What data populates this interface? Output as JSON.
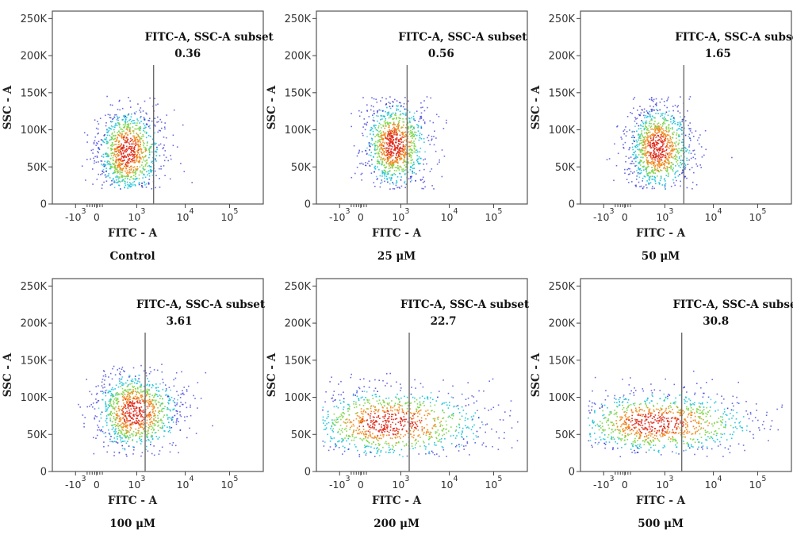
{
  "figure": {
    "y_axis_title": "SSC - A",
    "x_axis_title": "FITC - A",
    "gate_name": "FITC-A, SSC-A subset",
    "y_tick_labels": [
      "0",
      "50K",
      "100K",
      "150K",
      "200K",
      "250K"
    ],
    "x_tick_labels": [
      {
        "base": "-10",
        "exp": "3"
      },
      {
        "base": "0",
        "exp": ""
      },
      {
        "base": "10",
        "exp": "3"
      },
      {
        "base": "10",
        "exp": "4"
      },
      {
        "base": "10",
        "exp": "5"
      }
    ],
    "colors": {
      "low_density": "#3a3ad6",
      "mid_density": "#22c4d8",
      "high_density": "#f08a1c",
      "peak_density": "#e02a1a",
      "gate_line": "#6b6b6b",
      "frame": "#555555"
    }
  },
  "chart_data": [
    {
      "type": "scatter",
      "caption": "Control",
      "gate_label": "FITC-A, SSC-A subset",
      "gate_percent": 0.36,
      "gate_percent_text": "0.36",
      "xlabel": "FITC - A",
      "ylabel": "SSC - A",
      "ylim": [
        0,
        260000
      ],
      "x_scale": "biexponential",
      "population": {
        "x_center": 500,
        "y_center": 70000,
        "x_spread": "narrow",
        "y_spread": 30000
      }
    },
    {
      "type": "scatter",
      "caption": "25 μM",
      "gate_label": "FITC-A, SSC-A subset",
      "gate_percent": 0.56,
      "gate_percent_text": "0.56",
      "xlabel": "FITC - A",
      "ylabel": "SSC - A",
      "ylim": [
        0,
        260000
      ],
      "x_scale": "biexponential",
      "population": {
        "x_center": 600,
        "y_center": 80000,
        "x_spread": "narrow",
        "y_spread": 30000
      }
    },
    {
      "type": "scatter",
      "caption": "50 μM",
      "gate_label": "FITC-A, SSC-A subset",
      "gate_percent": 1.65,
      "gate_percent_text": "1.65",
      "xlabel": "FITC - A",
      "ylabel": "SSC - A",
      "ylim": [
        0,
        260000
      ],
      "x_scale": "biexponential",
      "population": {
        "x_center": 600,
        "y_center": 75000,
        "x_spread": "narrow",
        "y_spread": 30000
      }
    },
    {
      "type": "scatter",
      "caption": "100 μM",
      "gate_label": "FITC-A, SSC-A subset",
      "gate_percent": 3.61,
      "gate_percent_text": "3.61",
      "xlabel": "FITC - A",
      "ylabel": "SSC - A",
      "ylim": [
        0,
        260000
      ],
      "x_scale": "biexponential",
      "population": {
        "x_center": 800,
        "y_center": 80000,
        "x_spread": "medium",
        "y_spread": 28000
      }
    },
    {
      "type": "scatter",
      "caption": "200 μM",
      "gate_label": "FITC-A, SSC-A subset",
      "gate_percent": 22.7,
      "gate_percent_text": "22.7",
      "xlabel": "FITC - A",
      "ylabel": "SSC - A",
      "ylim": [
        0,
        260000
      ],
      "x_scale": "biexponential",
      "population": {
        "x_center": 400,
        "y_center": 65000,
        "x_spread": "wide",
        "y_spread": 25000
      }
    },
    {
      "type": "scatter",
      "caption": "500 μM",
      "gate_label": "FITC-A, SSC-A subset",
      "gate_percent": 30.8,
      "gate_percent_text": "30.8",
      "xlabel": "FITC - A",
      "ylabel": "SSC - A",
      "ylim": [
        0,
        260000
      ],
      "x_scale": "biexponential",
      "population": {
        "x_center": 500,
        "y_center": 65000,
        "x_spread": "wide",
        "y_spread": 22000
      }
    }
  ]
}
